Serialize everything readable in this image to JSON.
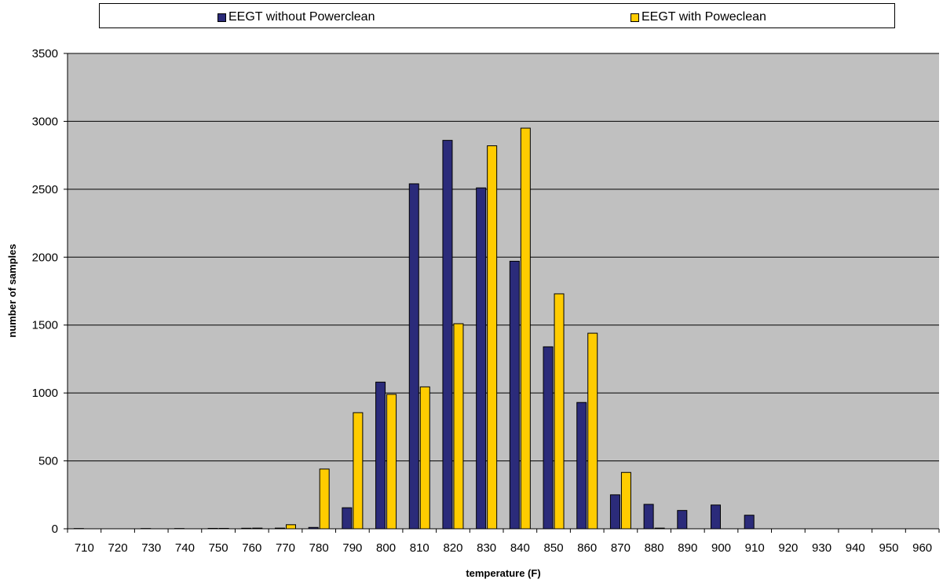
{
  "chart_data": {
    "type": "bar",
    "title": "",
    "xlabel": "temperature (F)",
    "ylabel": "number of samples",
    "ylim": [
      0,
      3500
    ],
    "yticks": [
      0,
      500,
      1000,
      1500,
      2000,
      2500,
      3000,
      3500
    ],
    "grid": true,
    "legend_position": "top",
    "categories": [
      "710",
      "720",
      "730",
      "740",
      "750",
      "760",
      "770",
      "780",
      "790",
      "800",
      "810",
      "820",
      "830",
      "840",
      "850",
      "860",
      "870",
      "880",
      "890",
      "900",
      "910",
      "920",
      "930",
      "940",
      "950",
      "960"
    ],
    "series": [
      {
        "name": "EEGT without Powerclean",
        "color": "#2b2b7a",
        "values": [
          2,
          0,
          2,
          2,
          3,
          4,
          5,
          10,
          155,
          1080,
          2540,
          2860,
          2510,
          1970,
          1340,
          930,
          250,
          180,
          135,
          175,
          100,
          0,
          0,
          0,
          0,
          0
        ]
      },
      {
        "name": "EEGT with Poweclean",
        "color": "#ffcc00",
        "values": [
          0,
          0,
          0,
          0,
          3,
          5,
          30,
          440,
          855,
          990,
          1045,
          1510,
          2820,
          2950,
          1730,
          1440,
          415,
          5,
          0,
          0,
          0,
          0,
          0,
          0,
          0,
          0
        ]
      }
    ],
    "plot_background": "#c0c0c0"
  }
}
